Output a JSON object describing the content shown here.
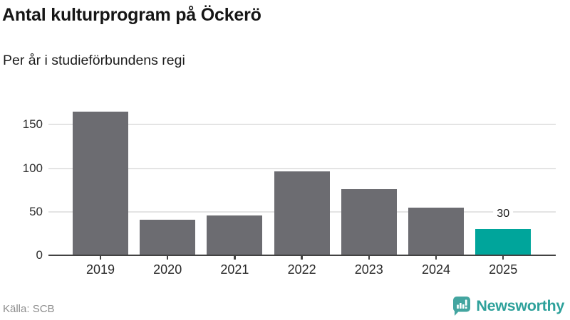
{
  "header": {
    "title": "Antal kulturprogram på Öckerö",
    "subtitle": "Per år i studieförbundens regi"
  },
  "chart_data": {
    "type": "bar",
    "title": "Antal kulturprogram på Öckerö",
    "subtitle": "Per år i studieförbundens regi",
    "xlabel": "",
    "ylabel": "",
    "categories": [
      "2019",
      "2020",
      "2021",
      "2022",
      "2023",
      "2024",
      "2025"
    ],
    "values": [
      165,
      41,
      46,
      96,
      76,
      55,
      30
    ],
    "highlight_index": 6,
    "value_labels": {
      "6": "30"
    },
    "yticks": [
      0,
      50,
      100,
      150
    ],
    "ylim": [
      0,
      187
    ],
    "grid": true,
    "legend": "none",
    "bar_color": "#6c6c71",
    "highlight_color": "#00a59b"
  },
  "footer": {
    "source": "Källa: SCB",
    "brand": "Newsworthy",
    "brand_color": "#2ea19b",
    "logo_icon": "bar-chart-speech-bubble"
  }
}
